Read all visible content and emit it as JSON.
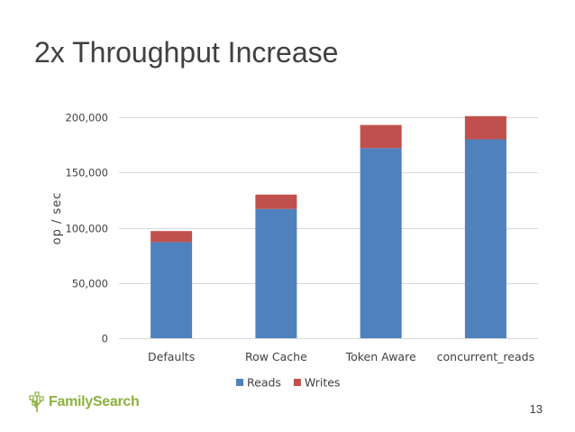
{
  "slide": {
    "title": "2x Throughput Increase",
    "page_number": "13",
    "logo_text": "FamilySearch"
  },
  "colors": {
    "reads": "#4f81bd",
    "writes": "#c0504d",
    "grid": "#d9d9d9",
    "logo": "#8cb23f"
  },
  "chart_data": {
    "type": "bar",
    "stacked": true,
    "title": "",
    "xlabel": "",
    "ylabel": "op / sec",
    "ylim": [
      0,
      200000
    ],
    "y_ticks": [
      0,
      50000,
      100000,
      150000,
      200000
    ],
    "y_tick_labels": [
      "0",
      "50,000",
      "100,000",
      "150,000",
      "200,000"
    ],
    "categories": [
      "Defaults",
      "Row Cache",
      "Token Aware",
      "concurrent_reads"
    ],
    "series": [
      {
        "name": "Reads",
        "color": "#4f81bd",
        "values": [
          87000,
          117000,
          172000,
          180000
        ]
      },
      {
        "name": "Writes",
        "color": "#c0504d",
        "values": [
          10000,
          13000,
          21000,
          21000
        ]
      }
    ],
    "grid": true,
    "legend": "bottom-center"
  }
}
